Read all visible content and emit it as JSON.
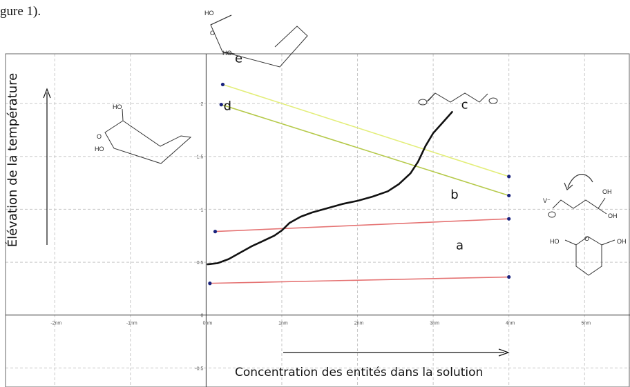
{
  "caption_fragment": "gure 1).",
  "chart_data": {
    "type": "line",
    "title": "",
    "xlabel": "Concentration des entités dans la solution",
    "ylabel": "Élévation de la température",
    "xlim": [
      -2.65,
      5.6
    ],
    "ylim": [
      -0.68,
      2.47
    ],
    "grid": true,
    "x_ticks": [
      {
        "v": -2,
        "label": "-2nm"
      },
      {
        "v": -1,
        "label": "-1nm"
      },
      {
        "v": 0,
        "label": "0nm"
      },
      {
        "v": 1,
        "label": "1nm"
      },
      {
        "v": 2,
        "label": "2nm"
      },
      {
        "v": 3,
        "label": "3nm"
      },
      {
        "v": 4,
        "label": "4nm"
      },
      {
        "v": 5,
        "label": "5nm"
      }
    ],
    "y_ticks": [
      {
        "v": -0.5,
        "label": "-0.5"
      },
      {
        "v": 0,
        "label": "0"
      },
      {
        "v": 0.5,
        "label": "0.5"
      },
      {
        "v": 1,
        "label": "1"
      },
      {
        "v": 1.5,
        "label": "1.5"
      },
      {
        "v": 2,
        "label": "2"
      }
    ],
    "curve": {
      "color": "#111111",
      "x": [
        0.02,
        0.15,
        0.3,
        0.45,
        0.6,
        0.75,
        0.9,
        1.0,
        1.1,
        1.25,
        1.4,
        1.6,
        1.8,
        2.0,
        2.2,
        2.4,
        2.55,
        2.7,
        2.8,
        2.9,
        3.0,
        3.1,
        3.2,
        3.25
      ],
      "y": [
        0.48,
        0.49,
        0.53,
        0.59,
        0.65,
        0.7,
        0.75,
        0.8,
        0.87,
        0.93,
        0.97,
        1.01,
        1.05,
        1.08,
        1.12,
        1.17,
        1.24,
        1.34,
        1.45,
        1.6,
        1.72,
        1.8,
        1.88,
        1.92
      ]
    },
    "segments": [
      {
        "label": "a",
        "color": "#e57373",
        "x": [
          0.05,
          4.0
        ],
        "y": [
          0.3,
          0.36
        ]
      },
      {
        "label": "a",
        "color": "#e57373",
        "x": [
          0.12,
          4.0
        ],
        "y": [
          0.79,
          0.91
        ]
      },
      {
        "label": "b",
        "color": "#b5c94a",
        "x": [
          0.2,
          4.0
        ],
        "y": [
          1.99,
          1.13
        ]
      },
      {
        "label": "d",
        "color": "#e3ee7a",
        "x": [
          0.22,
          4.0
        ],
        "y": [
          2.18,
          1.31
        ]
      }
    ],
    "point_color": "#1a237e",
    "annotations": [
      {
        "text": "a",
        "x": 3.3,
        "y": 0.62
      },
      {
        "text": "b",
        "x": 3.23,
        "y": 1.1
      },
      {
        "text": "c",
        "x": 3.37,
        "y": 1.95
      },
      {
        "text": "d",
        "x": 0.23,
        "y": 1.94
      },
      {
        "text": "e",
        "x": 0.38,
        "y": 2.39
      }
    ]
  },
  "molecules": {
    "chair_top_labels": [
      "HO",
      "O",
      "HO"
    ],
    "chair_left_labels": [
      "HO",
      "O",
      "HO"
    ],
    "right_open_labels": [
      "OH",
      "OH"
    ],
    "right_ring_labels": [
      "HO",
      "O",
      "OH"
    ]
  }
}
